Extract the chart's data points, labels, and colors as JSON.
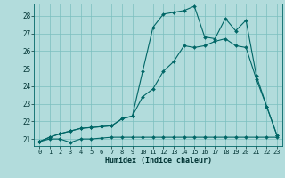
{
  "xlabel": "Humidex (Indice chaleur)",
  "bg_color": "#b2dcdc",
  "grid_color": "#7bbfbf",
  "line_color": "#006666",
  "xlim": [
    -0.5,
    23.5
  ],
  "ylim": [
    20.6,
    28.7
  ],
  "yticks": [
    21,
    22,
    23,
    24,
    25,
    26,
    27,
    28
  ],
  "xticks": [
    0,
    1,
    2,
    3,
    4,
    5,
    6,
    7,
    8,
    9,
    10,
    11,
    12,
    13,
    14,
    15,
    16,
    17,
    18,
    19,
    20,
    21,
    22,
    23
  ],
  "line1_x": [
    0,
    1,
    2,
    3,
    4,
    5,
    6,
    7,
    8,
    9,
    10,
    11,
    12,
    13,
    14,
    15,
    16,
    17,
    18,
    19,
    20,
    21,
    22,
    23
  ],
  "line1_y": [
    20.85,
    21.0,
    21.0,
    20.8,
    21.0,
    21.0,
    21.05,
    21.1,
    21.1,
    21.1,
    21.1,
    21.1,
    21.1,
    21.1,
    21.1,
    21.1,
    21.1,
    21.1,
    21.1,
    21.1,
    21.1,
    21.1,
    21.1,
    21.1
  ],
  "line2_x": [
    0,
    1,
    2,
    3,
    4,
    5,
    6,
    7,
    8,
    9,
    10,
    11,
    12,
    13,
    14,
    15,
    16,
    17,
    18,
    19,
    20,
    21,
    22,
    23
  ],
  "line2_y": [
    20.85,
    21.1,
    21.3,
    21.45,
    21.6,
    21.65,
    21.7,
    21.75,
    22.15,
    22.3,
    23.4,
    23.85,
    24.85,
    25.4,
    26.3,
    26.2,
    26.3,
    26.55,
    26.7,
    26.3,
    26.2,
    24.4,
    22.85,
    21.2
  ],
  "line3_x": [
    0,
    1,
    2,
    3,
    4,
    5,
    6,
    7,
    8,
    9,
    10,
    11,
    12,
    13,
    14,
    15,
    16,
    17,
    18,
    19,
    20,
    21,
    22,
    23
  ],
  "line3_y": [
    20.85,
    21.1,
    21.3,
    21.45,
    21.6,
    21.65,
    21.7,
    21.75,
    22.15,
    22.3,
    24.85,
    27.35,
    28.1,
    28.2,
    28.3,
    28.55,
    26.8,
    26.7,
    27.85,
    27.15,
    27.75,
    24.6,
    22.85,
    21.2
  ]
}
